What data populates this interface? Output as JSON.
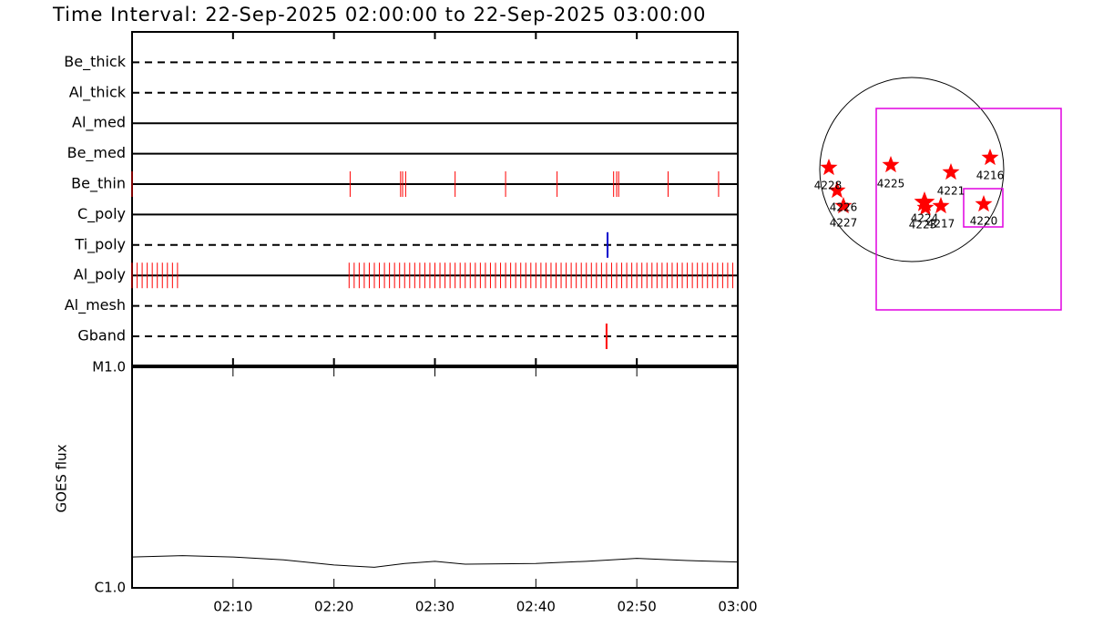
{
  "title": "Time Interval: 22-Sep-2025 02:00:00 to 22-Sep-2025 03:00:00",
  "chart_data": [
    {
      "type": "timeline",
      "xlim": [
        "02:00",
        "03:00"
      ],
      "rows": [
        {
          "name": "Be_thick",
          "line_style": "dashed",
          "event_color": "#ff0000",
          "events": []
        },
        {
          "name": "Al_thick",
          "line_style": "dashed",
          "event_color": "#ff0000",
          "events": []
        },
        {
          "name": "Al_med",
          "line_style": "solid",
          "event_color": "#ff0000",
          "events": []
        },
        {
          "name": "Be_med",
          "line_style": "solid",
          "event_color": "#ff0000",
          "events": []
        },
        {
          "name": "Be_thin",
          "line_style": "solid",
          "event_color": "#ff0000",
          "events": [
            "02:00:00",
            "02:21:36",
            "02:26:36",
            "02:26:48",
            "02:27:06",
            "02:32:00",
            "02:37:00",
            "02:42:06",
            "02:47:42",
            "02:48:00",
            "02:48:12",
            "02:53:06",
            "02:58:06"
          ]
        },
        {
          "name": "C_poly",
          "line_style": "solid",
          "event_color": "#ff0000",
          "events": []
        },
        {
          "name": "Ti_poly",
          "line_style": "dashed",
          "event_color": "#0000cc",
          "events": [
            "02:47:06"
          ]
        },
        {
          "name": "Al_poly",
          "line_style": "solid",
          "event_color": "#ff0000",
          "events": [
            "02:00:00",
            "02:00:30",
            "02:01:00",
            "02:01:30",
            "02:02:00",
            "02:02:30",
            "02:03:00",
            "02:03:30",
            "02:04:00",
            "02:04:30",
            "02:21:30",
            "02:22:00",
            "02:22:30",
            "02:23:00",
            "02:23:30",
            "02:24:00",
            "02:24:30",
            "02:25:00",
            "02:25:30",
            "02:26:00",
            "02:26:30",
            "02:27:00",
            "02:27:30",
            "02:28:00",
            "02:28:30",
            "02:29:00",
            "02:29:30",
            "02:30:00",
            "02:30:30",
            "02:31:00",
            "02:31:30",
            "02:32:00",
            "02:32:30",
            "02:33:00",
            "02:33:30",
            "02:34:00",
            "02:34:30",
            "02:35:00",
            "02:35:30",
            "02:36:00",
            "02:36:30",
            "02:37:00",
            "02:37:30",
            "02:38:00",
            "02:38:30",
            "02:39:00",
            "02:39:30",
            "02:40:00",
            "02:40:30",
            "02:41:00",
            "02:41:30",
            "02:42:00",
            "02:42:30",
            "02:43:00",
            "02:43:30",
            "02:44:00",
            "02:44:30",
            "02:45:00",
            "02:45:30",
            "02:46:00",
            "02:46:30",
            "02:47:00",
            "02:47:30",
            "02:48:00",
            "02:48:30",
            "02:49:00",
            "02:49:30",
            "02:50:00",
            "02:50:30",
            "02:51:00",
            "02:51:30",
            "02:52:00",
            "02:52:30",
            "02:53:00",
            "02:53:30",
            "02:54:00",
            "02:54:30",
            "02:55:00",
            "02:55:30",
            "02:56:00",
            "02:56:30",
            "02:57:00",
            "02:57:30",
            "02:58:00",
            "02:58:30",
            "02:59:00",
            "02:59:30"
          ]
        },
        {
          "name": "Al_mesh",
          "line_style": "dashed",
          "event_color": "#ff0000",
          "events": []
        },
        {
          "name": "Gband",
          "line_style": "dashed",
          "event_color": "#ff0000",
          "events": [
            "02:47:00"
          ]
        }
      ]
    },
    {
      "type": "line",
      "y_label": "GOES flux",
      "log_scale": true,
      "x": [
        "02:00",
        "02:05",
        "02:10",
        "02:15",
        "02:20",
        "02:24",
        "02:27",
        "02:30",
        "02:33",
        "02:40",
        "02:45",
        "02:50",
        "02:55",
        "03:00"
      ],
      "series": [
        {
          "color": "#000000",
          "values": [
            1.38e-06,
            1.4e-06,
            1.38e-06,
            1.34e-06,
            1.27e-06,
            1.24e-06,
            1.29e-06,
            1.32e-06,
            1.28e-06,
            1.29e-06,
            1.32e-06,
            1.36e-06,
            1.33e-06,
            1.31e-06
          ]
        }
      ],
      "xlim": [
        "02:00",
        "03:00"
      ],
      "xticks": [
        "02:10",
        "02:20",
        "02:30",
        "02:40",
        "02:50",
        "03:00"
      ],
      "ylim": [
        1e-06,
        1e-05
      ],
      "yticks": [
        {
          "value": 1e-06,
          "label": "C1.0"
        },
        {
          "value": 1e-05,
          "label": "M1.0"
        }
      ]
    }
  ],
  "map": {
    "regions": [
      {
        "label": "4228"
      },
      {
        "label": "4226"
      },
      {
        "label": "4227"
      },
      {
        "label": "4225"
      },
      {
        "label": "4221"
      },
      {
        "label": "4216"
      },
      {
        "label": "4224"
      },
      {
        "label": "4223"
      },
      {
        "label": "4217"
      },
      {
        "label": "4220"
      }
    ]
  }
}
